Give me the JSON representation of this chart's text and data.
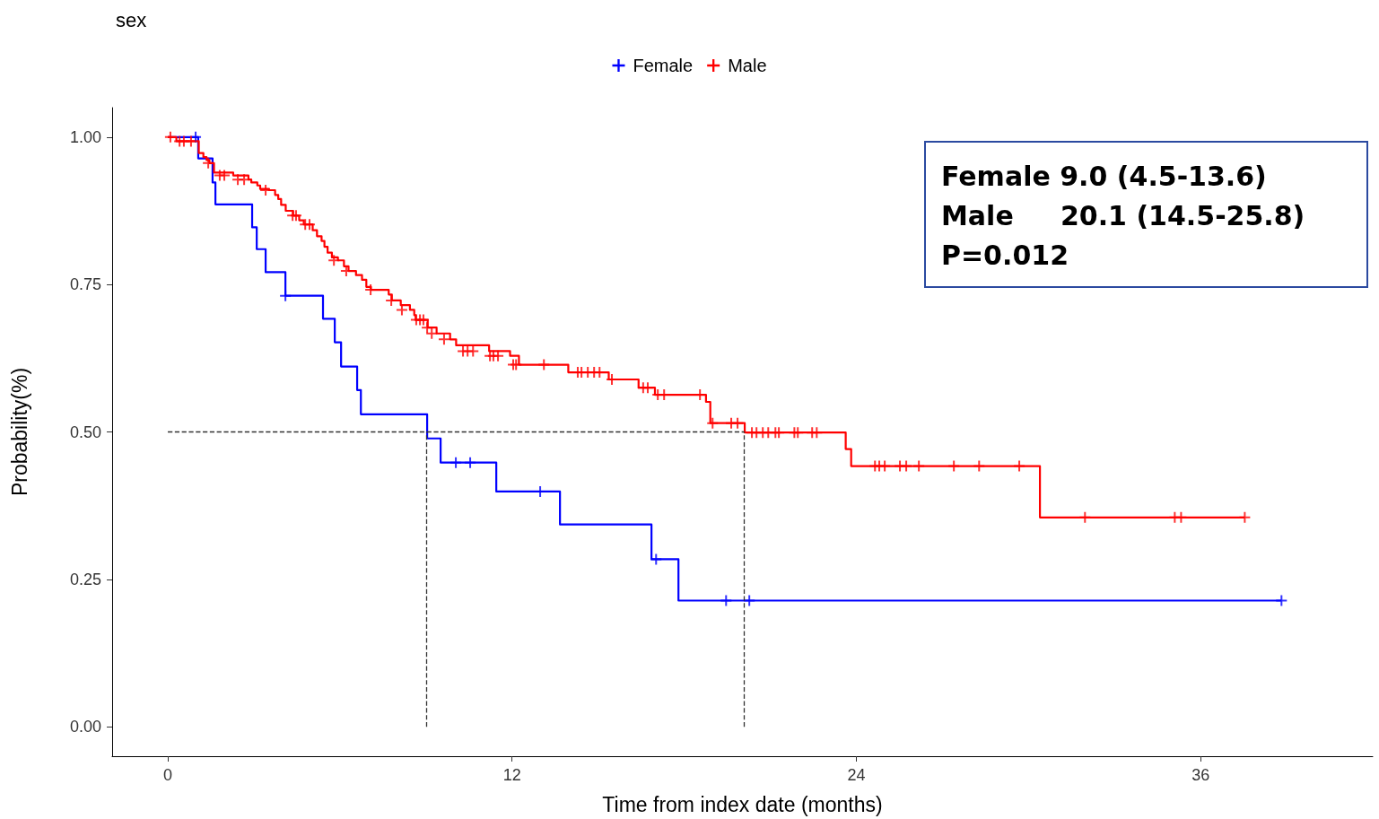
{
  "chart_data": {
    "type": "step",
    "title": "sex",
    "xlabel": "Time from index date (months)",
    "ylabel": "Probability(%)",
    "annotations": [
      "Female 9.0 (4.5-13.6)",
      "Male     20.1 (14.5-25.8)",
      "P=0.012"
    ],
    "xlim": [
      -1.94,
      42
    ],
    "xticks": [
      0,
      12,
      24,
      36
    ],
    "ylim": [
      -0.05,
      1.05
    ],
    "yticks": [
      {
        "value": 0,
        "label": "0.00"
      },
      {
        "value": 0.25,
        "label": "0.25"
      },
      {
        "value": 0.5,
        "label": "0.50"
      },
      {
        "value": 0.75,
        "label": "0.75"
      },
      {
        "value": 1,
        "label": "1.00"
      }
    ],
    "legend": "top",
    "grid": false,
    "line_style": "solid",
    "ref_lines": [
      {
        "axis": "y",
        "value": 0.5,
        "color": "#333333",
        "line_style": "dashed"
      },
      {
        "axis": "x",
        "value": 9.0,
        "color": "#333333",
        "line_style": "dashed"
      },
      {
        "axis": "x",
        "value": 20.1,
        "color": "#333333",
        "line_style": "dashed"
      }
    ],
    "series": [
      {
        "name": "Female",
        "color": "#0000ff",
        "x": [
          0,
          1.06,
          1.56,
          1.66,
          2.94,
          3.1,
          3.41,
          4.1,
          5.41,
          5.82,
          6.04,
          6.6,
          6.73,
          9.04,
          9.51,
          11.45,
          13.67,
          16.86,
          17.8,
          38.82
        ],
        "values": [
          1.0,
          0.964,
          0.923,
          0.886,
          0.847,
          0.81,
          0.771,
          0.731,
          0.692,
          0.652,
          0.611,
          0.571,
          0.53,
          0.489,
          0.448,
          0.399,
          0.343,
          0.284,
          0.214,
          0.214
        ]
      },
      {
        "name": "Male",
        "color": "#ff0000",
        "x": [
          0,
          0.3,
          1.08,
          1.24,
          1.35,
          1.45,
          1.61,
          2.28,
          2.81,
          2.91,
          3.12,
          3.22,
          3.53,
          3.74,
          3.85,
          3.95,
          4.11,
          4.37,
          4.58,
          4.74,
          5.05,
          5.2,
          5.36,
          5.46,
          5.57,
          5.72,
          5.93,
          6.14,
          6.3,
          6.56,
          6.77,
          6.92,
          7.08,
          7.7,
          7.81,
          8.12,
          8.44,
          8.59,
          8.64,
          9.06,
          9.37,
          9.84,
          10.05,
          11.2,
          11.93,
          12.24,
          13.96,
          15.37,
          16.41,
          16.98,
          18.76,
          18.91,
          20.11,
          23.63,
          23.82,
          30.4,
          37.54
        ],
        "values": [
          1.0,
          0.993,
          0.973,
          0.966,
          0.961,
          0.956,
          0.94,
          0.935,
          0.928,
          0.923,
          0.918,
          0.912,
          0.91,
          0.902,
          0.895,
          0.885,
          0.875,
          0.867,
          0.859,
          0.852,
          0.842,
          0.832,
          0.824,
          0.814,
          0.804,
          0.796,
          0.791,
          0.781,
          0.773,
          0.766,
          0.758,
          0.746,
          0.741,
          0.733,
          0.723,
          0.715,
          0.707,
          0.698,
          0.69,
          0.677,
          0.667,
          0.657,
          0.647,
          0.637,
          0.629,
          0.614,
          0.601,
          0.589,
          0.575,
          0.563,
          0.551,
          0.515,
          0.499,
          0.471,
          0.442,
          0.355,
          0.355
        ]
      },
      {
        "type": "scatter",
        "marker": "cross",
        "color": "#0000ff",
        "x": [
          0.97,
          4.1,
          10.04,
          10.54,
          12.98,
          17.02,
          19.46,
          20.27,
          38.82
        ],
        "values": [
          1.0,
          0.731,
          0.448,
          0.448,
          0.399,
          0.284,
          0.214,
          0.214,
          0.214
        ]
      },
      {
        "type": "scatter",
        "marker": "cross",
        "color": "#ff0000",
        "x": [
          0.09,
          0.41,
          0.56,
          0.81,
          1.41,
          1.81,
          1.97,
          2.44,
          2.66,
          3.41,
          4.35,
          4.47,
          4.79,
          4.94,
          5.79,
          6.22,
          7.07,
          7.79,
          8.16,
          8.66,
          8.79,
          8.91,
          9.04,
          9.2,
          9.63,
          10.29,
          10.45,
          10.64,
          11.23,
          11.35,
          11.51,
          12.04,
          12.14,
          13.11,
          14.29,
          14.42,
          14.64,
          14.86,
          15.05,
          15.48,
          16.57,
          16.73,
          17.08,
          17.3,
          18.55,
          18.99,
          19.64,
          19.86,
          20.36,
          20.52,
          20.74,
          20.93,
          21.18,
          21.3,
          21.84,
          21.96,
          22.46,
          22.62,
          24.65,
          24.8,
          24.99,
          25.52,
          25.74,
          26.18,
          27.4,
          28.28,
          29.68,
          31.97,
          35.1,
          35.32,
          37.54
        ],
        "values": [
          1.0,
          0.993,
          0.993,
          0.993,
          0.956,
          0.935,
          0.935,
          0.928,
          0.928,
          0.91,
          0.867,
          0.867,
          0.852,
          0.852,
          0.791,
          0.773,
          0.741,
          0.723,
          0.707,
          0.69,
          0.69,
          0.69,
          0.677,
          0.667,
          0.657,
          0.637,
          0.637,
          0.637,
          0.629,
          0.629,
          0.629,
          0.614,
          0.614,
          0.614,
          0.601,
          0.601,
          0.601,
          0.601,
          0.601,
          0.589,
          0.575,
          0.575,
          0.563,
          0.563,
          0.563,
          0.515,
          0.515,
          0.515,
          0.499,
          0.499,
          0.499,
          0.499,
          0.499,
          0.499,
          0.499,
          0.499,
          0.499,
          0.499,
          0.442,
          0.442,
          0.442,
          0.442,
          0.442,
          0.442,
          0.442,
          0.442,
          0.442,
          0.355,
          0.355,
          0.355,
          0.355
        ]
      }
    ]
  }
}
